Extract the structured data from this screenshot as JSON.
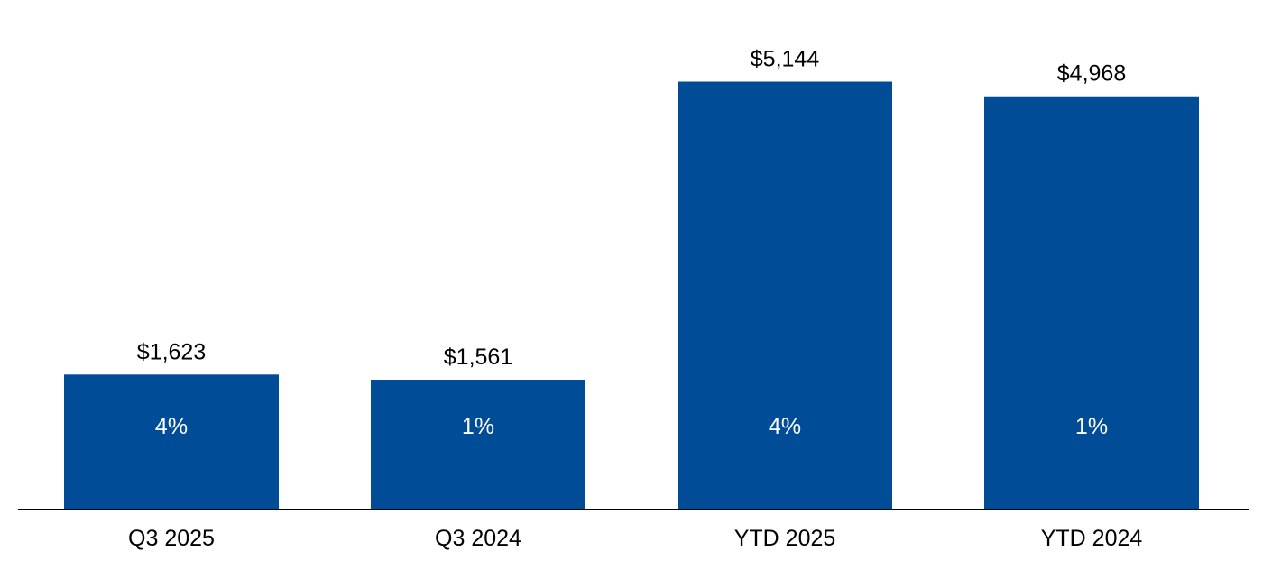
{
  "chart_data": {
    "type": "bar",
    "title": "",
    "xlabel": "",
    "ylabel": "",
    "categories": [
      "Q3 2025",
      "Q3 2024",
      "YTD 2025",
      "YTD 2024"
    ],
    "values": [
      1623,
      1561,
      5144,
      4968
    ],
    "value_labels": [
      "$1,623",
      "$1,561",
      "$5,144",
      "$4,968"
    ],
    "bar_labels": [
      "4%",
      "1%",
      "4%",
      "1%"
    ],
    "ylim": [
      0,
      5800
    ],
    "grid": false,
    "legend": "none",
    "colors": {
      "bar": "#004C97",
      "axis": "#000000",
      "value_text": "#000000",
      "bar_text": "#FFFFFF"
    }
  }
}
